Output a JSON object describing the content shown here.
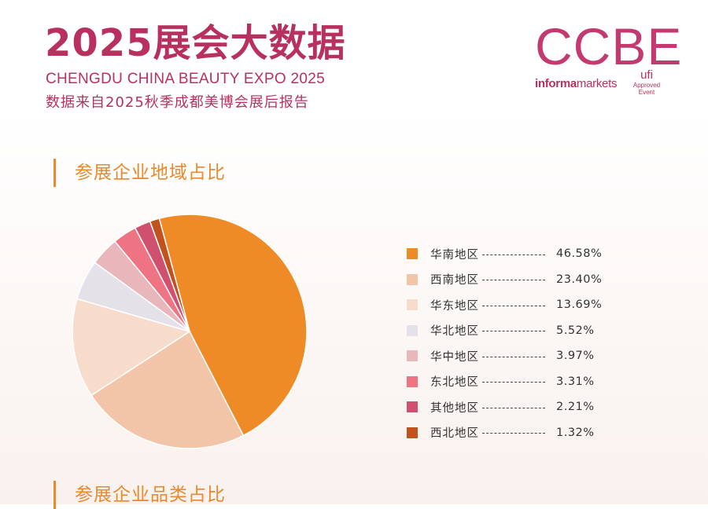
{
  "header": {
    "title": "2025展会大数据",
    "subtitle_en": "CHENGDU CHINA BEAUTY EXPO 2025",
    "subtitle_cn": "数据来自2025秋季成都美博会展后报告"
  },
  "logo": {
    "main": "CCBE",
    "informa": "informa",
    "markets": "markets",
    "ufi_name": "ufi",
    "ufi_sub1": "Approved",
    "ufi_sub2": "Event"
  },
  "sections": {
    "region_title": "参展企业地域占比",
    "category_title": "参展企业品类占比"
  },
  "legend": {
    "dashes": "----------"
  },
  "chart_data": {
    "type": "pie",
    "title": "参展企业地域占比",
    "slices": [
      {
        "label": "华南地区",
        "value": 46.58,
        "display": "46.58%",
        "color": "#ef8b27"
      },
      {
        "label": "西南地区",
        "value": 23.4,
        "display": "23.40%",
        "color": "#f2c4a8"
      },
      {
        "label": "华东地区",
        "value": 13.69,
        "display": "13.69%",
        "color": "#f8dccb"
      },
      {
        "label": "华北地区",
        "value": 5.52,
        "display": "5.52%",
        "color": "#e5e1e8"
      },
      {
        "label": "华中地区",
        "value": 3.97,
        "display": "3.97%",
        "color": "#e8b6bb"
      },
      {
        "label": "东北地区",
        "value": 3.31,
        "display": "3.31%",
        "color": "#ee7483"
      },
      {
        "label": "其他地区",
        "value": 2.21,
        "display": "2.21%",
        "color": "#d0506f"
      },
      {
        "label": "西北地区",
        "value": 1.32,
        "display": "1.32%",
        "color": "#c2521d"
      }
    ]
  }
}
